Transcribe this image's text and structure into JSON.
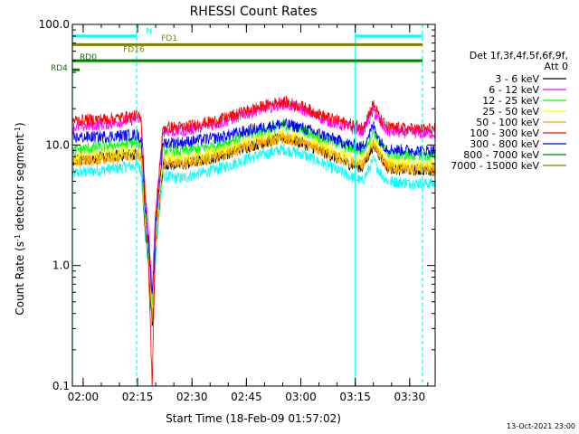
{
  "chart_data": {
    "type": "line",
    "title": "RHESSI Count Rates",
    "xlabel": "Start Time (18-Feb-09 01:57:02)",
    "ylabel_parts": [
      "Count Rate (s",
      "-1",
      " detector segment",
      "-1",
      ")"
    ],
    "x_unit": "minutes since 01:57:02",
    "xlim": [
      0,
      100
    ],
    "ylim": [
      0.1,
      100
    ],
    "y_scale": "log",
    "x_ticks": [
      {
        "value": 2.97,
        "label": "02:00"
      },
      {
        "value": 17.97,
        "label": "02:15"
      },
      {
        "value": 32.97,
        "label": "02:30"
      },
      {
        "value": 47.97,
        "label": "02:45"
      },
      {
        "value": 62.97,
        "label": "03:00"
      },
      {
        "value": 77.97,
        "label": "03:15"
      },
      {
        "value": 92.97,
        "label": "03:30"
      }
    ],
    "y_ticks": [
      {
        "value": 0.1,
        "label": "0.1"
      },
      {
        "value": 1.0,
        "label": "1.0"
      },
      {
        "value": 10.0,
        "label": "10.0"
      },
      {
        "value": 100.0,
        "label": "100.0"
      }
    ],
    "legend": {
      "header": [
        "Det 1f,3f,4f,5f,6f,9f,",
        "Att 0"
      ],
      "placement": "right"
    },
    "series": [
      {
        "name": "3 - 6 keV",
        "color": "#000000",
        "x": [
          0,
          10,
          18,
          19,
          20,
          21,
          22,
          23,
          25,
          30,
          40,
          50,
          58,
          63,
          70,
          76,
          80,
          83,
          85,
          87,
          90,
          95,
          100
        ],
        "y": [
          7.5,
          8.0,
          8.5,
          8.0,
          2.0,
          1.2,
          0.3,
          1.5,
          7.0,
          6.8,
          8.0,
          10.0,
          11.5,
          10.5,
          8.5,
          7.0,
          6.5,
          10.0,
          8.0,
          6.5,
          6.3,
          6.2,
          6.2
        ]
      },
      {
        "name": "6 - 12 keV",
        "color": "#ff00ff",
        "x": [
          0,
          10,
          18,
          19,
          20,
          21,
          22,
          23,
          25,
          30,
          40,
          50,
          58,
          63,
          70,
          76,
          80,
          83,
          85,
          87,
          90,
          95,
          100
        ],
        "y": [
          14.0,
          15.0,
          16.5,
          15.0,
          4.0,
          2.0,
          0.6,
          3.0,
          13.0,
          13.0,
          15.0,
          19.0,
          22.0,
          20.0,
          16.0,
          14.0,
          13.0,
          19.0,
          15.0,
          13.0,
          12.8,
          12.6,
          12.5
        ]
      },
      {
        "name": "12 - 25 keV",
        "color": "#00ff00",
        "x": [
          0,
          10,
          18,
          19,
          20,
          21,
          22,
          23,
          25,
          30,
          40,
          50,
          58,
          63,
          70,
          76,
          80,
          83,
          85,
          87,
          90,
          95,
          100
        ],
        "y": [
          9.0,
          9.8,
          10.5,
          9.5,
          3.0,
          1.5,
          0.45,
          2.0,
          9.0,
          8.8,
          10.0,
          12.5,
          14.5,
          13.5,
          11.0,
          9.5,
          8.8,
          13.0,
          10.0,
          8.5,
          8.3,
          8.2,
          8.2
        ]
      },
      {
        "name": "25 - 50 keV",
        "color": "#ffff00",
        "x": [
          0,
          10,
          18,
          19,
          20,
          21,
          22,
          23,
          25,
          30,
          40,
          50,
          58,
          63,
          70,
          76,
          80,
          83,
          85,
          87,
          90,
          95,
          100
        ],
        "y": [
          7.8,
          8.5,
          9.2,
          8.3,
          2.5,
          1.3,
          0.4,
          1.8,
          8.0,
          7.6,
          8.7,
          11.0,
          12.5,
          11.5,
          9.5,
          8.0,
          7.5,
          11.0,
          8.5,
          7.2,
          7.0,
          6.9,
          6.9
        ]
      },
      {
        "name": "50 - 100 keV",
        "color": "#ffa500",
        "x": [
          0,
          10,
          18,
          19,
          20,
          21,
          22,
          23,
          25,
          30,
          40,
          50,
          58,
          63,
          70,
          76,
          80,
          83,
          85,
          87,
          90,
          95,
          100
        ],
        "y": [
          7.2,
          7.8,
          8.4,
          7.6,
          2.2,
          1.2,
          0.35,
          1.6,
          7.3,
          7.0,
          8.0,
          10.0,
          11.5,
          10.5,
          8.6,
          7.3,
          6.8,
          10.0,
          7.8,
          6.6,
          6.4,
          6.3,
          6.3
        ]
      },
      {
        "name": "100 - 300 keV",
        "color": "#ff0000",
        "x": [
          0,
          10,
          18,
          19,
          20,
          21,
          22,
          23,
          25,
          30,
          40,
          50,
          58,
          63,
          70,
          76,
          80,
          83,
          85,
          87,
          90,
          95,
          100
        ],
        "y": [
          16.0,
          16.5,
          17.5,
          16.0,
          4.5,
          1.0,
          0.1,
          2.5,
          14.0,
          14.0,
          16.0,
          20.0,
          23.0,
          21.0,
          17.0,
          15.0,
          14.0,
          22.0,
          16.0,
          14.0,
          13.8,
          13.6,
          13.5
        ]
      },
      {
        "name": "300 - 800 keV",
        "color": "#0000ff",
        "x": [
          0,
          10,
          18,
          19,
          20,
          21,
          22,
          23,
          25,
          30,
          40,
          50,
          58,
          63,
          70,
          76,
          80,
          83,
          85,
          87,
          90,
          95,
          100
        ],
        "y": [
          11.5,
          11.8,
          12.2,
          11.0,
          3.2,
          1.6,
          0.5,
          2.2,
          10.5,
          10.5,
          11.5,
          13.5,
          15.0,
          14.0,
          11.8,
          10.2,
          9.6,
          14.5,
          10.5,
          9.3,
          9.1,
          9.0,
          9.0
        ]
      },
      {
        "name": "800 - 7000 keV",
        "color": "#008000",
        "x": [
          0,
          100
        ],
        "y": [
          50.0,
          50.0
        ]
      },
      {
        "name": "7000 - 15000 keV",
        "color": "#808000",
        "x": [
          0,
          100
        ],
        "y": [
          68.0,
          68.0
        ]
      }
    ],
    "extra_series": [
      {
        "color": "#00ffff",
        "x": [
          0,
          10,
          18,
          19,
          20,
          21,
          22,
          23,
          25,
          30,
          40,
          50,
          58,
          63,
          70,
          76,
          80,
          83,
          85,
          87,
          90,
          95,
          100
        ],
        "y": [
          5.8,
          6.3,
          6.8,
          6.0,
          1.9,
          1.0,
          0.3,
          1.3,
          5.5,
          5.3,
          6.3,
          8.0,
          9.2,
          8.5,
          6.8,
          5.6,
          5.0,
          7.5,
          5.8,
          5.0,
          4.9,
          4.8,
          4.8
        ]
      }
    ],
    "annotations": [
      {
        "text": "N",
        "x": 20.3,
        "y": 84.0,
        "color": "#00ffff"
      },
      {
        "text": "FD1",
        "x": 24.5,
        "y": 73.0,
        "color": "#808000"
      },
      {
        "text": "FD16",
        "x": 14.0,
        "y": 59.0,
        "color": "#808000"
      },
      {
        "text": "RD0",
        "x": 2.0,
        "y": 51.0,
        "color": "#008000"
      },
      {
        "text": "RD4",
        "x": -6.0,
        "y": 41.5,
        "color": "#008000"
      }
    ],
    "vertical_lines": [
      {
        "x": 0.0,
        "style": "solid",
        "color": "#00ffff"
      },
      {
        "x": 17.7,
        "style": "dashed",
        "color": "#00ffff"
      },
      {
        "x": 78.0,
        "style": "solid",
        "color": "#00ffff"
      },
      {
        "x": 96.5,
        "style": "dashed",
        "color": "#00ffff"
      }
    ],
    "status_bars": [
      {
        "color": "#00ffff",
        "y": 80.0,
        "x": [
          [
            0,
            17.7
          ],
          [
            78.0,
            96.5
          ]
        ]
      },
      {
        "color": "#808000",
        "y": 68.0,
        "x": [
          [
            0,
            96.5
          ]
        ]
      },
      {
        "color": "#008000",
        "y": 50.0,
        "x": [
          [
            0,
            96.5
          ]
        ]
      },
      {
        "color": "#008000",
        "y": 42.0,
        "x": [
          [
            0,
            2.0
          ]
        ]
      }
    ]
  },
  "footer": {
    "timestamp": "13-Oct-2021 23:00"
  }
}
